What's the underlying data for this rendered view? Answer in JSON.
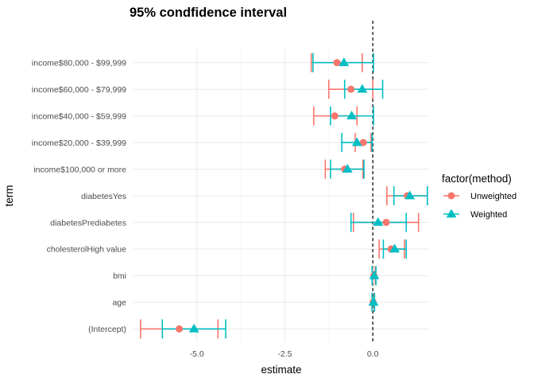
{
  "chart_data": {
    "type": "errorbar-point",
    "title": "95% condfidence interval",
    "xlabel": "estimate",
    "ylabel": "term",
    "xlim": [
      -6.8,
      1.6
    ],
    "x_ticks": [
      -5.0,
      -2.5,
      0.0
    ],
    "x_tick_labels": [
      "-5.0",
      "-2.5",
      "0.0"
    ],
    "reference_line_x": 0,
    "legend_title": "factor(method)",
    "legend_position": "right",
    "grid": true,
    "categories": [
      "income$80,000 - $99,999",
      "income$60,000 - $79,999",
      "income$40,000 - $59,999",
      "income$20,000 - $39,999",
      "income$100,000 or more",
      "diabetesYes",
      "diabetesPrediabetes",
      "cholesterolHigh value",
      "bmi",
      "age",
      "(Intercept)"
    ],
    "series": [
      {
        "name": "Unweighted",
        "color": "#F8766D",
        "marker": "circle",
        "estimate": [
          -1.02,
          -0.62,
          -1.08,
          -0.27,
          -0.8,
          0.98,
          0.38,
          0.52,
          0.03,
          0.01,
          -5.5
        ],
        "lower": [
          -1.75,
          -1.25,
          -1.68,
          -0.5,
          -1.35,
          0.4,
          -0.55,
          0.18,
          -0.01,
          -0.02,
          -6.6
        ],
        "upper": [
          -0.3,
          0.0,
          -0.45,
          -0.05,
          -0.28,
          1.55,
          1.3,
          0.9,
          0.07,
          0.04,
          -4.4
        ]
      },
      {
        "name": "Weighted",
        "color": "#00BFC4",
        "marker": "triangle",
        "estimate": [
          -0.82,
          -0.3,
          -0.6,
          -0.45,
          -0.72,
          1.05,
          0.15,
          0.62,
          0.04,
          0.02,
          -5.08
        ],
        "lower": [
          -1.7,
          -0.8,
          -1.2,
          -0.88,
          -1.2,
          0.6,
          -0.62,
          0.3,
          -0.02,
          -0.02,
          -5.98
        ],
        "upper": [
          0.02,
          0.28,
          0.02,
          -0.02,
          -0.25,
          1.55,
          0.95,
          0.95,
          0.09,
          0.05,
          -4.18
        ]
      }
    ]
  }
}
